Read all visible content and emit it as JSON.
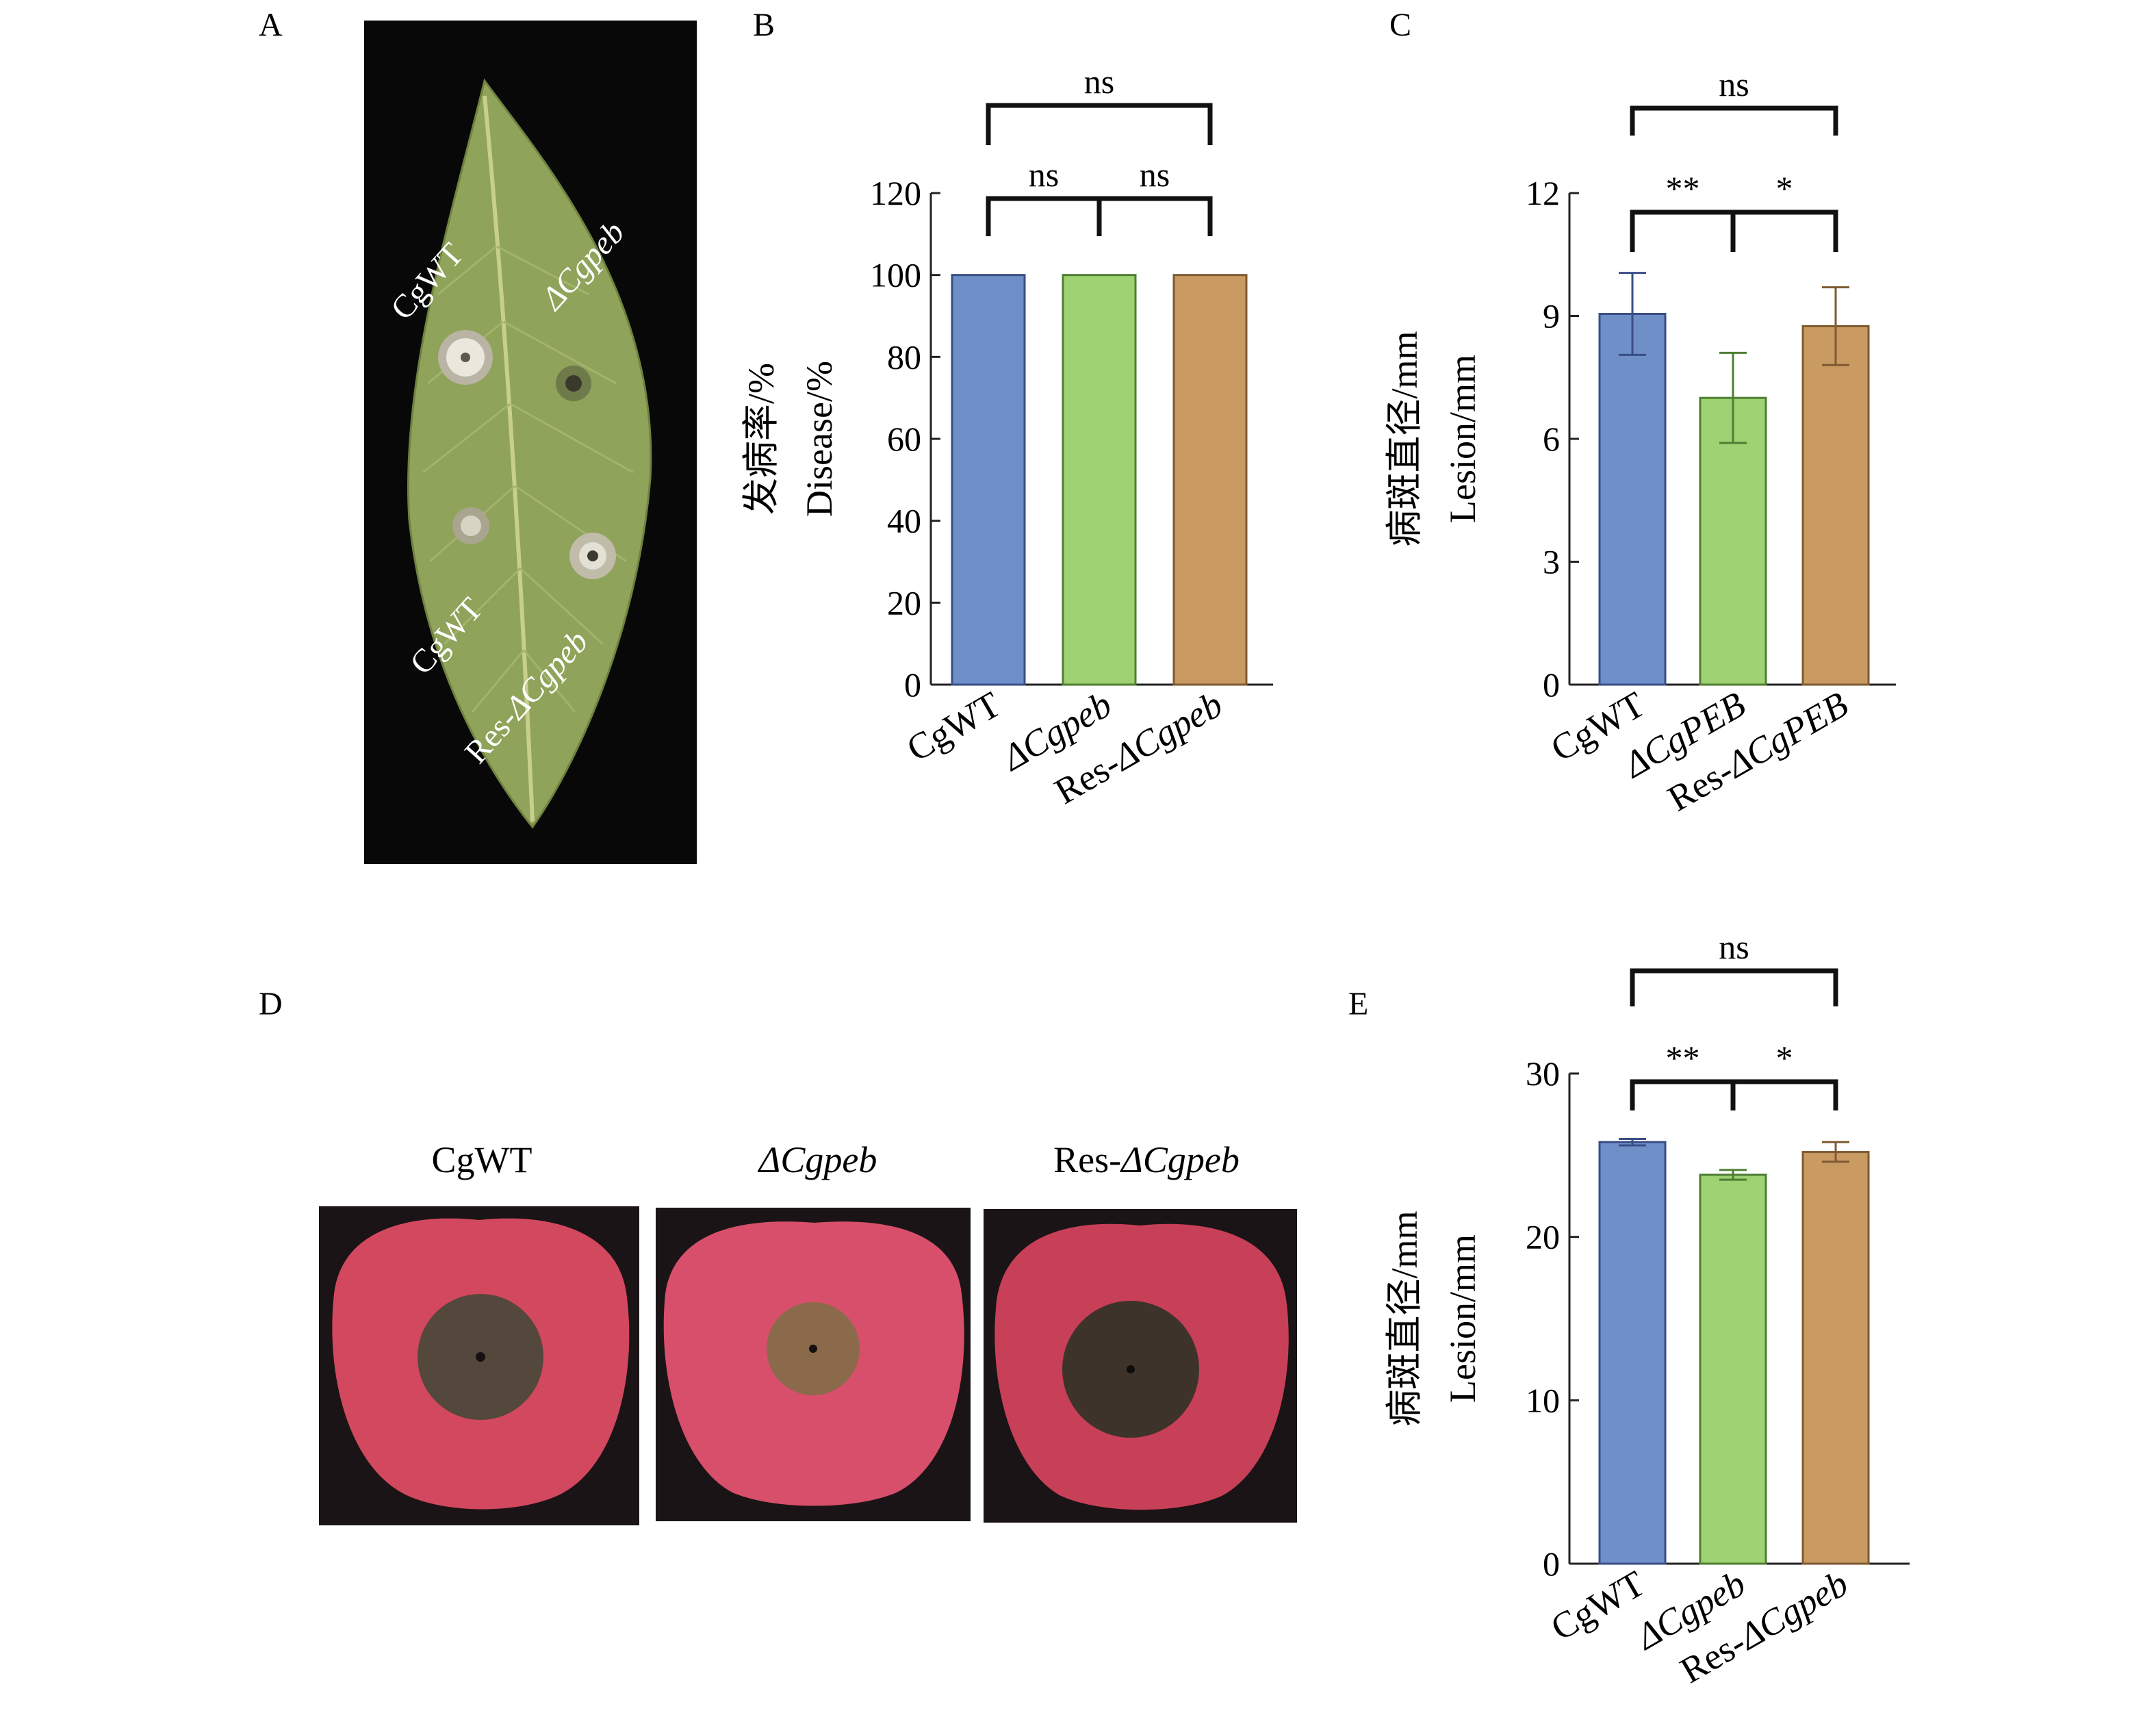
{
  "panel_letters": {
    "A": "A",
    "B": "B",
    "C": "C",
    "D": "D",
    "E": "E"
  },
  "leaf_photo": {
    "labels": [
      "CgWT",
      "ΔCgpeb",
      "CgWT",
      "Res-ΔCgpeb"
    ],
    "colors": {
      "background": "#090808",
      "leaf": "#8fa35a",
      "lesion": "#d9d3c6"
    }
  },
  "apple_photos": {
    "captions": [
      "CgWT",
      "ΔCgpeb",
      "Res-ΔCgpeb"
    ],
    "colors": {
      "background": "#1b1416",
      "skin": "#d2485f",
      "lesion": "#54473b"
    }
  },
  "colors": {
    "blue": "#6f8fc8",
    "green": "#9ed272",
    "brown": "#c99a62",
    "blue_edge": "#3a4e86",
    "green_edge": "#4e7e33",
    "brown_edge": "#7e5a32"
  },
  "chart_data": [
    {
      "id": "B",
      "type": "bar",
      "categories": [
        "CgWT",
        "ΔCgpeb",
        "Res-ΔCgpeb"
      ],
      "values": [
        100,
        100,
        100
      ],
      "ylabel_cn": "发病率/%",
      "ylabel_en": "Disease/%",
      "ylim": [
        0,
        120
      ],
      "yticks": [
        0,
        20,
        40,
        60,
        80,
        100,
        120
      ],
      "significance": [
        {
          "from": 0,
          "to": 1,
          "label": "ns",
          "level": 1
        },
        {
          "from": 1,
          "to": 2,
          "label": "ns",
          "level": 1
        },
        {
          "from": 0,
          "to": 2,
          "label": "ns",
          "level": 2
        }
      ]
    },
    {
      "id": "C",
      "type": "bar",
      "categories": [
        "CgWT",
        "ΔCgPEB",
        "Res-ΔCgPEB"
      ],
      "values": [
        9.05,
        7.0,
        8.75
      ],
      "errors": [
        1.0,
        1.1,
        0.95
      ],
      "ylabel_cn": "病斑直径/mm",
      "ylabel_en": "Lesion/mm",
      "ylim": [
        0,
        12
      ],
      "yticks": [
        0,
        3,
        6,
        9,
        12
      ],
      "significance": [
        {
          "from": 0,
          "to": 1,
          "label": "**",
          "level": 1
        },
        {
          "from": 1,
          "to": 2,
          "label": "*",
          "level": 1
        },
        {
          "from": 0,
          "to": 2,
          "label": "ns",
          "level": 2
        }
      ]
    },
    {
      "id": "E",
      "type": "bar",
      "categories": [
        "CgWT",
        "ΔCgpeb",
        "Res-ΔCgpeb"
      ],
      "values": [
        25.8,
        23.8,
        25.2
      ],
      "errors": [
        0.2,
        0.3,
        0.6
      ],
      "ylabel_cn": "病斑直径/mm",
      "ylabel_en": "Lesion/mm",
      "ylim": [
        0,
        30
      ],
      "yticks": [
        0,
        10,
        20,
        30
      ],
      "significance": [
        {
          "from": 0,
          "to": 1,
          "label": "**",
          "level": 1
        },
        {
          "from": 1,
          "to": 2,
          "label": "*",
          "level": 1
        },
        {
          "from": 0,
          "to": 2,
          "label": "ns",
          "level": 2
        }
      ]
    }
  ]
}
